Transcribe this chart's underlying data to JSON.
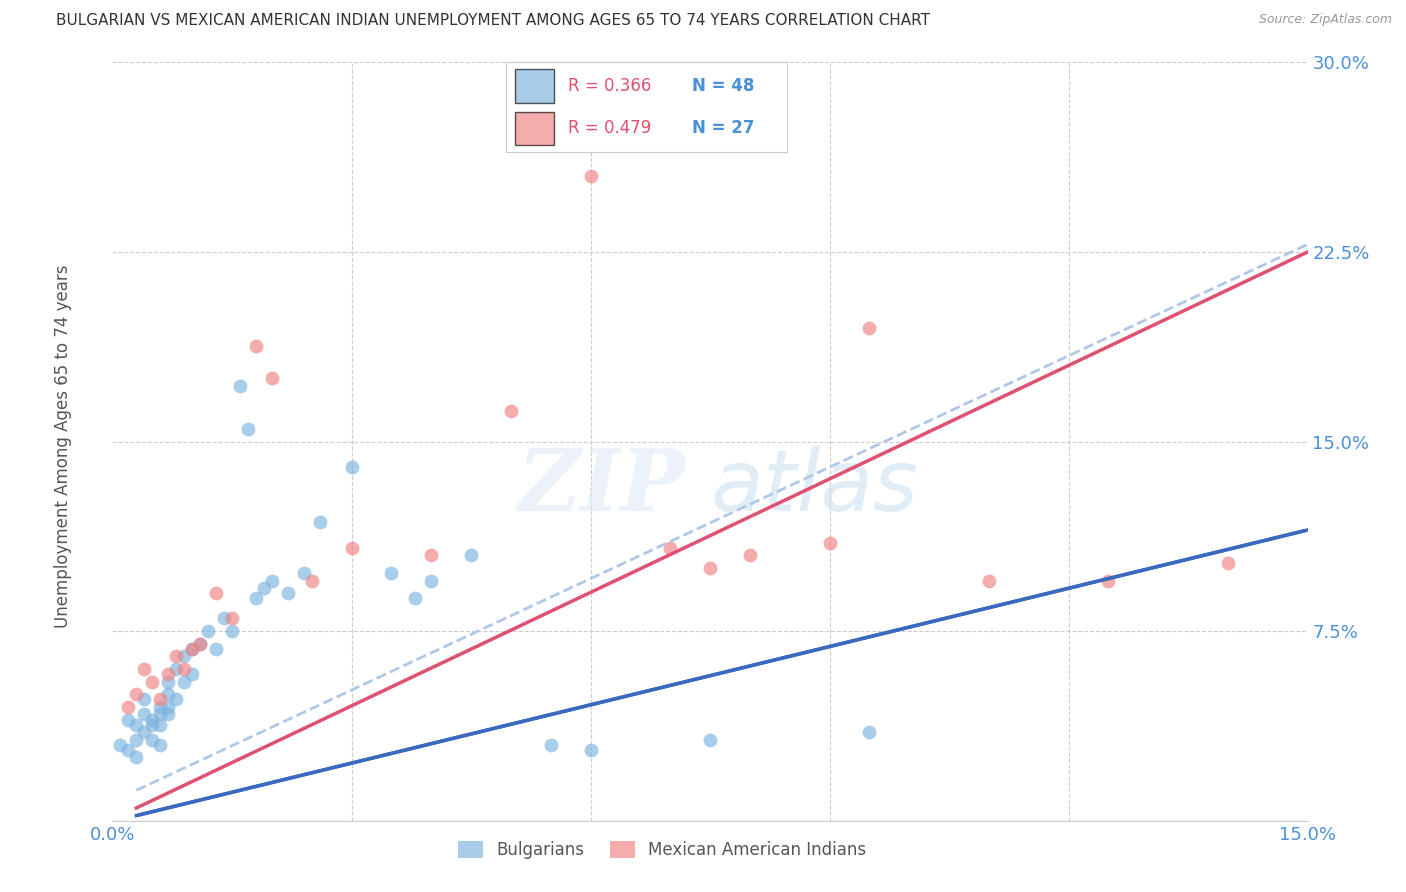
{
  "title": "BULGARIAN VS MEXICAN AMERICAN INDIAN UNEMPLOYMENT AMONG AGES 65 TO 74 YEARS CORRELATION CHART",
  "source": "Source: ZipAtlas.com",
  "ylabel": "Unemployment Among Ages 65 to 74 years",
  "xlim": [
    0.0,
    0.15
  ],
  "ylim": [
    0.0,
    0.3
  ],
  "xticks": [
    0.0,
    0.03,
    0.06,
    0.09,
    0.12,
    0.15
  ],
  "xticklabels": [
    "0.0%",
    "",
    "",
    "",
    "",
    "15.0%"
  ],
  "yticks": [
    0.0,
    0.075,
    0.15,
    0.225,
    0.3
  ],
  "yticklabels": [
    "",
    "7.5%",
    "15.0%",
    "22.5%",
    "30.0%"
  ],
  "bg_color": "#ffffff",
  "grid_color": "#cccccc",
  "watermark_zip": "ZIP",
  "watermark_atlas": "atlas",
  "legend_r1": "R = 0.366",
  "legend_n1": "N = 48",
  "legend_r2": "R = 0.479",
  "legend_n2": "N = 27",
  "blue_color": "#7ab3e0",
  "pink_color": "#f08080",
  "blue_line_color": "#3a6abf",
  "pink_line_color": "#e05070",
  "dash_line_color": "#b0c8e8",
  "axis_label_color": "#4a90d9",
  "title_color": "#333333",
  "bulgarians_x": [
    0.001,
    0.002,
    0.002,
    0.003,
    0.003,
    0.003,
    0.004,
    0.004,
    0.004,
    0.005,
    0.005,
    0.005,
    0.006,
    0.006,
    0.006,
    0.006,
    0.007,
    0.007,
    0.007,
    0.007,
    0.008,
    0.008,
    0.009,
    0.009,
    0.01,
    0.01,
    0.011,
    0.012,
    0.013,
    0.014,
    0.015,
    0.016,
    0.017,
    0.018,
    0.019,
    0.02,
    0.022,
    0.024,
    0.026,
    0.03,
    0.035,
    0.038,
    0.04,
    0.045,
    0.055,
    0.06,
    0.075,
    0.095
  ],
  "bulgarians_y": [
    0.03,
    0.028,
    0.04,
    0.032,
    0.038,
    0.025,
    0.042,
    0.035,
    0.048,
    0.04,
    0.038,
    0.032,
    0.045,
    0.042,
    0.038,
    0.03,
    0.05,
    0.045,
    0.055,
    0.042,
    0.048,
    0.06,
    0.055,
    0.065,
    0.058,
    0.068,
    0.07,
    0.075,
    0.068,
    0.08,
    0.075,
    0.172,
    0.155,
    0.088,
    0.092,
    0.095,
    0.09,
    0.098,
    0.118,
    0.14,
    0.098,
    0.088,
    0.095,
    0.105,
    0.03,
    0.028,
    0.032,
    0.035
  ],
  "mexican_x": [
    0.002,
    0.003,
    0.004,
    0.005,
    0.006,
    0.007,
    0.008,
    0.009,
    0.01,
    0.011,
    0.013,
    0.015,
    0.018,
    0.02,
    0.025,
    0.03,
    0.04,
    0.05,
    0.06,
    0.07,
    0.075,
    0.08,
    0.09,
    0.095,
    0.11,
    0.125,
    0.14
  ],
  "mexican_y": [
    0.045,
    0.05,
    0.06,
    0.055,
    0.048,
    0.058,
    0.065,
    0.06,
    0.068,
    0.07,
    0.09,
    0.08,
    0.188,
    0.175,
    0.095,
    0.108,
    0.105,
    0.162,
    0.255,
    0.108,
    0.1,
    0.105,
    0.11,
    0.195,
    0.095,
    0.095,
    0.102
  ],
  "blue_line": [
    0.003,
    0.002,
    0.15,
    0.115
  ],
  "pink_line": [
    0.003,
    0.005,
    0.15,
    0.225
  ],
  "dash_line": [
    0.003,
    0.012,
    0.15,
    0.228
  ]
}
